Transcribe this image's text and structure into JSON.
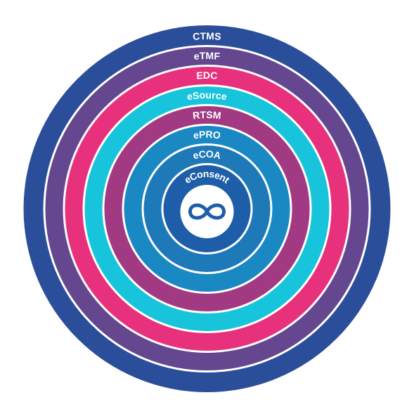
{
  "diagram": {
    "rings": [
      {
        "label": "CTMS",
        "color": "#2b4e9b"
      },
      {
        "label": "eTMF",
        "color": "#64478f"
      },
      {
        "label": "EDC",
        "color": "#e8317c"
      },
      {
        "label": "eSource",
        "color": "#18c4dc"
      },
      {
        "label": "RTSM",
        "color": "#a23a83"
      },
      {
        "label": "ePRO",
        "color": "#1a88c3"
      },
      {
        "label": "eCOA",
        "color": "#1e79b8"
      },
      {
        "label": "eConsent",
        "color": "#1e5ea8"
      }
    ],
    "center": {
      "icon": "infinity-logo-icon",
      "background": "#ffffff",
      "icon_color": "#1e5ea8"
    },
    "separator_color": "#ffffff"
  }
}
